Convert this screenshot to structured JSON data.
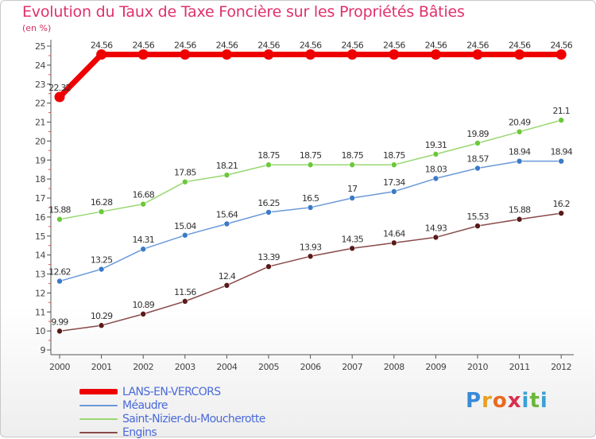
{
  "title": "Evolution du Taux de Taxe Foncière sur les Propriétés Bâties",
  "unit_label": "(en %)",
  "logo": {
    "letters": [
      {
        "ch": "P",
        "color": "#3a8ad8"
      },
      {
        "ch": "r",
        "color": "#e8a020"
      },
      {
        "ch": "o",
        "color": "#e86a20"
      },
      {
        "ch": "x",
        "color": "#d83050"
      },
      {
        "ch": "i",
        "color": "#3aa0d8"
      },
      {
        "ch": "t",
        "color": "#6ab83a"
      },
      {
        "ch": "i",
        "color": "#3aa0d8"
      }
    ]
  },
  "chart_data": {
    "type": "line",
    "title": "Evolution du Taux de Taxe Foncière sur les Propriétés Bâties",
    "ylabel": "(en %)",
    "xlabel": "",
    "x": [
      "2000",
      "2001",
      "2002",
      "2003",
      "2004",
      "2005",
      "2006",
      "2007",
      "2008",
      "2009",
      "2010",
      "2011",
      "2012"
    ],
    "ylim": [
      9,
      25
    ],
    "yticks": [
      "9",
      "10",
      "11",
      "12",
      "13",
      "14",
      "15",
      "16",
      "17",
      "18",
      "19",
      "20",
      "21",
      "22",
      "23",
      "24",
      "25"
    ],
    "grid": false,
    "legend_position": "bottom-left",
    "series": [
      {
        "name": "LANS-EN-VERCORS",
        "color": "#ee0000",
        "marker": "#ee0000",
        "thick": true,
        "values": [
          22.32,
          24.56,
          24.56,
          24.56,
          24.56,
          24.56,
          24.56,
          24.56,
          24.56,
          24.56,
          24.56,
          24.56,
          24.56
        ],
        "labels": [
          "22.32",
          "24.56",
          "24.56",
          "24.56",
          "24.56",
          "24.56",
          "24.56",
          "24.56",
          "24.56",
          "24.56",
          "24.56",
          "24.56",
          "24.56"
        ]
      },
      {
        "name": "Méaudre",
        "color": "#6a9ad8",
        "marker": "#3a7ac8",
        "thick": false,
        "values": [
          12.62,
          13.25,
          14.31,
          15.04,
          15.64,
          16.25,
          16.5,
          17,
          17.34,
          18.03,
          18.57,
          18.94,
          18.94
        ],
        "labels": [
          "12.62",
          "13.25",
          "14.31",
          "15.04",
          "15.64",
          "16.25",
          "16.5",
          "17",
          "17.34",
          "18.03",
          "18.57",
          "18.94",
          "18.94"
        ]
      },
      {
        "name": "Saint-Nizier-du-Moucherotte",
        "color": "#98d870",
        "marker": "#6ac83a",
        "thick": false,
        "values": [
          15.88,
          16.28,
          16.68,
          17.85,
          18.21,
          18.75,
          18.75,
          18.75,
          18.75,
          19.31,
          19.89,
          20.49,
          21.1
        ],
        "labels": [
          "15.88",
          "16.28",
          "16.68",
          "17.85",
          "18.21",
          "18.75",
          "18.75",
          "18.75",
          "18.75",
          "19.31",
          "19.89",
          "20.49",
          "21.1"
        ]
      },
      {
        "name": "Engins",
        "color": "#8a4a4a",
        "marker": "#5a1a1a",
        "thick": false,
        "values": [
          9.99,
          10.29,
          10.89,
          11.56,
          12.4,
          13.39,
          13.93,
          14.35,
          14.64,
          14.93,
          15.53,
          15.88,
          16.2
        ],
        "labels": [
          "9.99",
          "10.29",
          "10.89",
          "11.56",
          "12.4",
          "13.39",
          "13.93",
          "14.35",
          "14.64",
          "14.93",
          "15.53",
          "15.88",
          "16.2"
        ]
      }
    ]
  }
}
